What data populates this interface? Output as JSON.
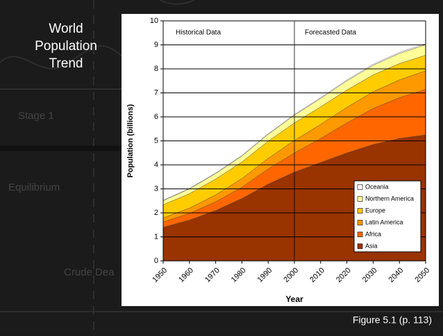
{
  "slide": {
    "title_lines": [
      "World",
      "Population",
      "Trend"
    ],
    "caption": "Figure 5.1 (p. 113)",
    "background_texts": [
      "Stage 1",
      "Equilibrium",
      "Crude Dea"
    ]
  },
  "chart_data": {
    "type": "stacked-area",
    "x": [
      1950,
      1960,
      1970,
      1980,
      1990,
      2000,
      2010,
      2020,
      2030,
      2040,
      2050
    ],
    "series": [
      {
        "name": "Asia",
        "color": "#993300",
        "values": [
          1.4,
          1.7,
          2.1,
          2.6,
          3.2,
          3.7,
          4.1,
          4.5,
          4.85,
          5.1,
          5.25
        ]
      },
      {
        "name": "Africa",
        "color": "#ff6600",
        "values": [
          0.22,
          0.28,
          0.36,
          0.47,
          0.63,
          0.8,
          1.0,
          1.25,
          1.5,
          1.7,
          1.9
        ]
      },
      {
        "name": "Latin America",
        "color": "#ff9900",
        "values": [
          0.17,
          0.22,
          0.29,
          0.36,
          0.44,
          0.52,
          0.59,
          0.65,
          0.7,
          0.74,
          0.77
        ]
      },
      {
        "name": "Europe",
        "color": "#ffcc00",
        "values": [
          0.55,
          0.6,
          0.66,
          0.69,
          0.72,
          0.73,
          0.73,
          0.72,
          0.7,
          0.68,
          0.65
        ]
      },
      {
        "name": "Northern America",
        "color": "#ffff99",
        "values": [
          0.17,
          0.2,
          0.23,
          0.25,
          0.28,
          0.32,
          0.35,
          0.38,
          0.4,
          0.42,
          0.44
        ]
      },
      {
        "name": "Oceania",
        "color": "#ffffff",
        "values": [
          0.013,
          0.016,
          0.02,
          0.023,
          0.027,
          0.031,
          0.035,
          0.039,
          0.043,
          0.046,
          0.048
        ]
      }
    ],
    "xlim": [
      1950,
      2050
    ],
    "xticks": [
      1950,
      1960,
      1970,
      1980,
      1990,
      2000,
      2010,
      2020,
      2030,
      2040,
      2050
    ],
    "ylim": [
      0,
      10
    ],
    "yticks": [
      0,
      1,
      2,
      3,
      4,
      5,
      6,
      7,
      8,
      9,
      10
    ],
    "grid": true,
    "x_label": "Year",
    "y_label": "Population (billions)",
    "divider": 2000,
    "annotations": [
      "Historical Data",
      "Forecasted Data"
    ],
    "legend": "lower-right"
  }
}
